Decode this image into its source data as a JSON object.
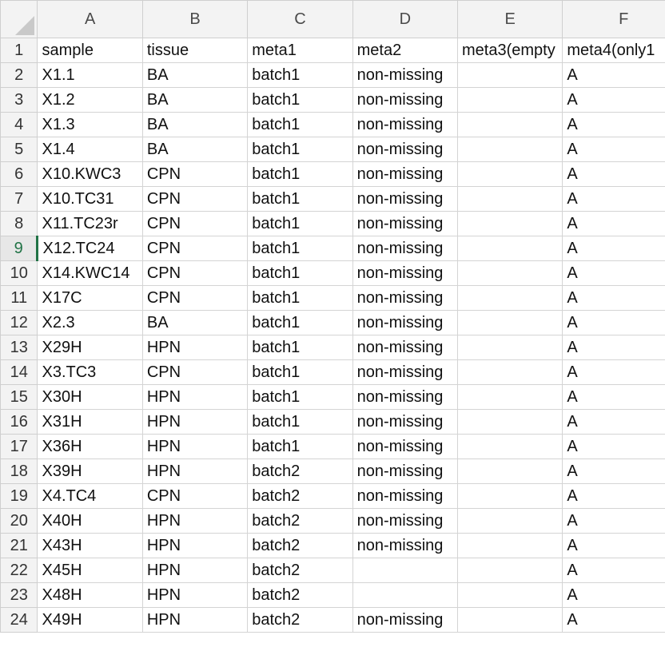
{
  "spreadsheet": {
    "columns": [
      "A",
      "B",
      "C",
      "D",
      "E",
      "F"
    ],
    "active_row": "9",
    "rows": [
      {
        "num": "1",
        "cells": [
          "sample",
          "tissue",
          "meta1",
          "meta2",
          "meta3(empty",
          "meta4(only1"
        ]
      },
      {
        "num": "2",
        "cells": [
          "X1.1",
          "BA",
          "batch1",
          "non-missing",
          "",
          "A"
        ]
      },
      {
        "num": "3",
        "cells": [
          "X1.2",
          "BA",
          "batch1",
          "non-missing",
          "",
          "A"
        ]
      },
      {
        "num": "4",
        "cells": [
          "X1.3",
          "BA",
          "batch1",
          "non-missing",
          "",
          "A"
        ]
      },
      {
        "num": "5",
        "cells": [
          "X1.4",
          "BA",
          "batch1",
          "non-missing",
          "",
          "A"
        ]
      },
      {
        "num": "6",
        "cells": [
          "X10.KWC3",
          "CPN",
          "batch1",
          "non-missing",
          "",
          "A"
        ]
      },
      {
        "num": "7",
        "cells": [
          "X10.TC31",
          "CPN",
          "batch1",
          "non-missing",
          "",
          "A"
        ]
      },
      {
        "num": "8",
        "cells": [
          "X11.TC23r",
          "CPN",
          "batch1",
          "non-missing",
          "",
          "A"
        ]
      },
      {
        "num": "9",
        "cells": [
          "X12.TC24",
          "CPN",
          "batch1",
          "non-missing",
          "",
          "A"
        ]
      },
      {
        "num": "10",
        "cells": [
          "X14.KWC14",
          "CPN",
          "batch1",
          "non-missing",
          "",
          "A"
        ]
      },
      {
        "num": "11",
        "cells": [
          "X17C",
          "CPN",
          "batch1",
          "non-missing",
          "",
          "A"
        ]
      },
      {
        "num": "12",
        "cells": [
          "X2.3",
          "BA",
          "batch1",
          "non-missing",
          "",
          "A"
        ]
      },
      {
        "num": "13",
        "cells": [
          "X29H",
          "HPN",
          "batch1",
          "non-missing",
          "",
          "A"
        ]
      },
      {
        "num": "14",
        "cells": [
          "X3.TC3",
          "CPN",
          "batch1",
          "non-missing",
          "",
          "A"
        ]
      },
      {
        "num": "15",
        "cells": [
          "X30H",
          "HPN",
          "batch1",
          "non-missing",
          "",
          "A"
        ]
      },
      {
        "num": "16",
        "cells": [
          "X31H",
          "HPN",
          "batch1",
          "non-missing",
          "",
          "A"
        ]
      },
      {
        "num": "17",
        "cells": [
          "X36H",
          "HPN",
          "batch1",
          "non-missing",
          "",
          "A"
        ]
      },
      {
        "num": "18",
        "cells": [
          "X39H",
          "HPN",
          "batch2",
          "non-missing",
          "",
          "A"
        ]
      },
      {
        "num": "19",
        "cells": [
          "X4.TC4",
          "CPN",
          "batch2",
          "non-missing",
          "",
          "A"
        ]
      },
      {
        "num": "20",
        "cells": [
          "X40H",
          "HPN",
          "batch2",
          "non-missing",
          "",
          "A"
        ]
      },
      {
        "num": "21",
        "cells": [
          "X43H",
          "HPN",
          "batch2",
          "non-missing",
          "",
          "A"
        ]
      },
      {
        "num": "22",
        "cells": [
          "X45H",
          "HPN",
          "batch2",
          "",
          "",
          "A"
        ]
      },
      {
        "num": "23",
        "cells": [
          "X48H",
          "HPN",
          "batch2",
          "",
          "",
          "A"
        ]
      },
      {
        "num": "24",
        "cells": [
          "X49H",
          "HPN",
          "batch2",
          "non-missing",
          "",
          "A"
        ]
      }
    ]
  }
}
